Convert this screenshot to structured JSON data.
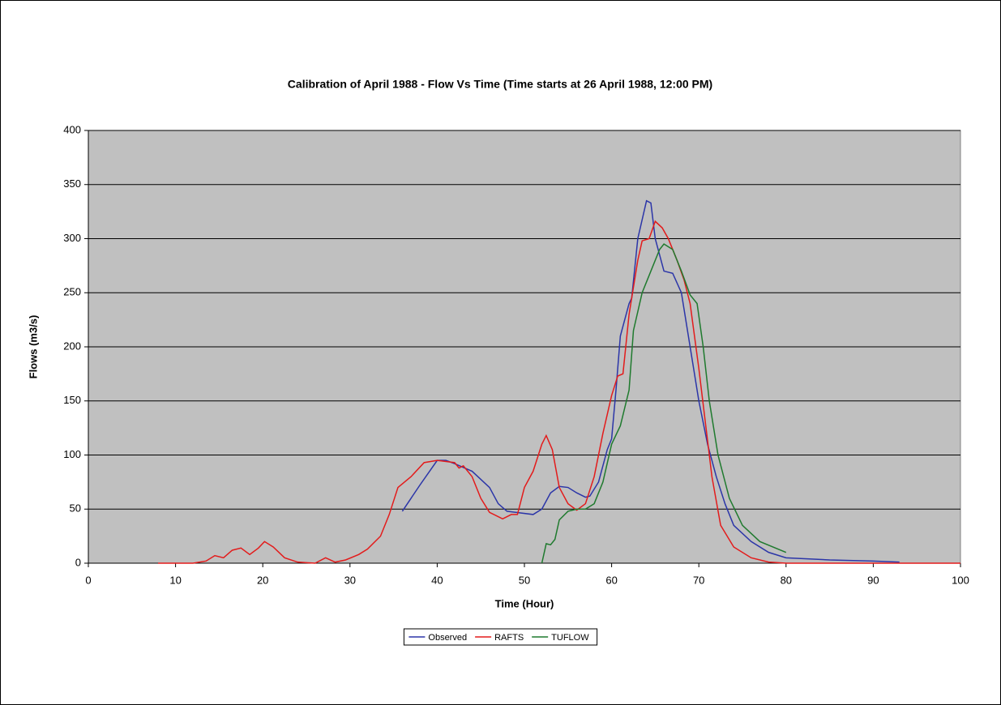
{
  "chart_data": {
    "type": "line",
    "title": "Calibration of April 1988 - Flow Vs Time (Time starts at 26 April 1988, 12:00 PM)",
    "x_label": "Time (Hour)",
    "y_label": "Flows (m3/s)",
    "xlim": [
      0,
      100
    ],
    "ylim": [
      0,
      400
    ],
    "xticks": [
      0,
      10,
      20,
      30,
      40,
      50,
      60,
      70,
      80,
      90,
      100
    ],
    "yticks": [
      0,
      50,
      100,
      150,
      200,
      250,
      300,
      350,
      400
    ],
    "grid": true,
    "plot_background": "#c0c0c0",
    "legend": "bottom",
    "series": [
      {
        "name": "Observed",
        "color": "#2b35a8",
        "x": [
          36,
          38,
          40,
          41,
          42,
          44,
          46,
          47,
          48,
          49,
          51,
          52,
          53,
          54,
          55,
          56,
          57,
          57.5,
          58.5,
          59.5,
          60,
          60.5,
          61,
          62,
          62.3,
          63,
          64,
          64.5,
          65,
          66,
          67,
          68,
          69,
          70,
          71,
          72,
          73,
          74,
          76,
          78,
          80,
          85,
          90,
          93
        ],
        "values": [
          48,
          72,
          95,
          95,
          92,
          85,
          70,
          55,
          48,
          47,
          45,
          50,
          65,
          71,
          70,
          65,
          61,
          62,
          75,
          105,
          115,
          160,
          210,
          240,
          245,
          300,
          335,
          333,
          300,
          270,
          268,
          250,
          200,
          150,
          110,
          80,
          55,
          35,
          20,
          10,
          5,
          3,
          2,
          1
        ]
      },
      {
        "name": "RAFTS",
        "color": "#e31b1b",
        "x": [
          8,
          12,
          13.5,
          14.5,
          15.5,
          16.5,
          17.5,
          18.5,
          19.5,
          20.2,
          21.2,
          22.5,
          24,
          26,
          27.2,
          28.3,
          29.5,
          31,
          32,
          33.5,
          34.5,
          35.5,
          37,
          38.5,
          40,
          42,
          42.5,
          43,
          44,
          45,
          46,
          47.5,
          48.5,
          49.2,
          50,
          51,
          52,
          52.5,
          53.2,
          54,
          55,
          56,
          57,
          58,
          59,
          60,
          60.7,
          61.3,
          62,
          63,
          63.5,
          64.3,
          65,
          65.8,
          66.5,
          67.5,
          68.3,
          69,
          70,
          71.5,
          72.5,
          74,
          76,
          78,
          80,
          100
        ],
        "values": [
          0,
          0,
          2,
          7,
          5,
          12,
          14,
          8,
          14,
          20,
          15,
          5,
          1,
          0,
          5,
          1,
          3,
          8,
          13,
          25,
          45,
          70,
          80,
          93,
          95,
          93,
          88,
          90,
          80,
          60,
          47,
          41,
          45,
          45,
          70,
          85,
          110,
          118,
          105,
          70,
          55,
          49,
          55,
          80,
          120,
          155,
          173,
          175,
          230,
          280,
          298,
          300,
          316,
          310,
          300,
          280,
          262,
          240,
          180,
          80,
          35,
          15,
          5,
          1,
          0,
          0
        ]
      },
      {
        "name": "TUFLOW",
        "color": "#1f7a2e",
        "x": [
          52,
          52.5,
          53,
          53.5,
          54,
          55,
          56,
          57,
          58,
          59,
          60,
          61,
          62,
          62.5,
          63.5,
          64.5,
          65.5,
          66,
          67,
          68,
          69,
          69.8,
          70.5,
          71.2,
          72.2,
          73.5,
          75,
          77,
          80
        ],
        "values": [
          0,
          18,
          17,
          22,
          40,
          48,
          50,
          50,
          55,
          75,
          110,
          127,
          160,
          215,
          250,
          270,
          290,
          295,
          290,
          270,
          248,
          240,
          200,
          150,
          100,
          60,
          35,
          20,
          10
        ]
      }
    ]
  }
}
